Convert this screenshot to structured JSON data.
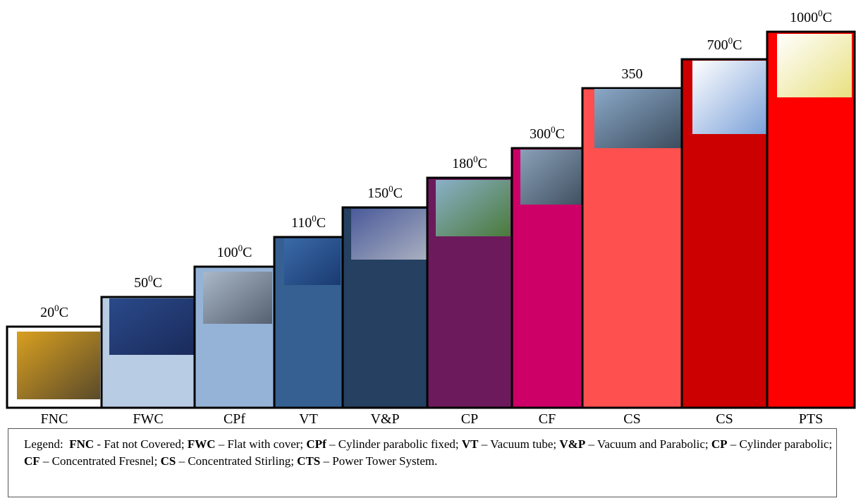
{
  "columns": [
    {
      "label": "FNC",
      "temp": [
        "20",
        "0",
        "C"
      ],
      "color": "#ffffff"
    },
    {
      "label": "FWC",
      "temp": [
        "50",
        "0",
        "C"
      ],
      "color": "#b8cce4"
    },
    {
      "label": "CPf",
      "temp": [
        "100",
        "0",
        "C"
      ],
      "color": "#95b3d7"
    },
    {
      "label": "VT",
      "temp": [
        "110",
        "0",
        "C"
      ],
      "color": "#366092"
    },
    {
      "label": "V&P",
      "temp": [
        "150",
        "0",
        "C"
      ],
      "color": "#254061"
    },
    {
      "label": "CP",
      "temp": [
        "180",
        "0",
        "C"
      ],
      "color": "#6d1a5c"
    },
    {
      "label": "CF",
      "temp": [
        "300",
        "0",
        "C"
      ],
      "color": "#cc0066"
    },
    {
      "label": "CS",
      "temp": [
        "350"
      ],
      "color": "#ff5050"
    },
    {
      "label": "CS",
      "temp": [
        "700",
        "0",
        "C"
      ],
      "color": "#cc0000"
    },
    {
      "label": "PTS",
      "temp": [
        "1000",
        "0",
        "C"
      ],
      "color": "#ff0000"
    }
  ],
  "legend": {
    "label": "Legend:",
    "items": [
      {
        "abbr": "FNC",
        "text": "- Fat not Covered;"
      },
      {
        "abbr": "FWC",
        "text": "– Flat with cover;"
      },
      {
        "abbr": "CPf",
        "text": "– Cylinder parabolic fixed;"
      },
      {
        "abbr": "VT",
        "text": "– Vacuum tube;"
      },
      {
        "abbr": "V&P",
        "text": "– Vacuum and Parabolic;"
      },
      {
        "abbr": "CP",
        "text": "– Cylinder parabolic;"
      },
      {
        "abbr": "CF",
        "text": "– Concentrated Fresnel;"
      },
      {
        "abbr": "CS",
        "text": "– Concentrated Stirling;"
      },
      {
        "abbr": "CTS",
        "text": "– Power Tower System."
      }
    ]
  }
}
